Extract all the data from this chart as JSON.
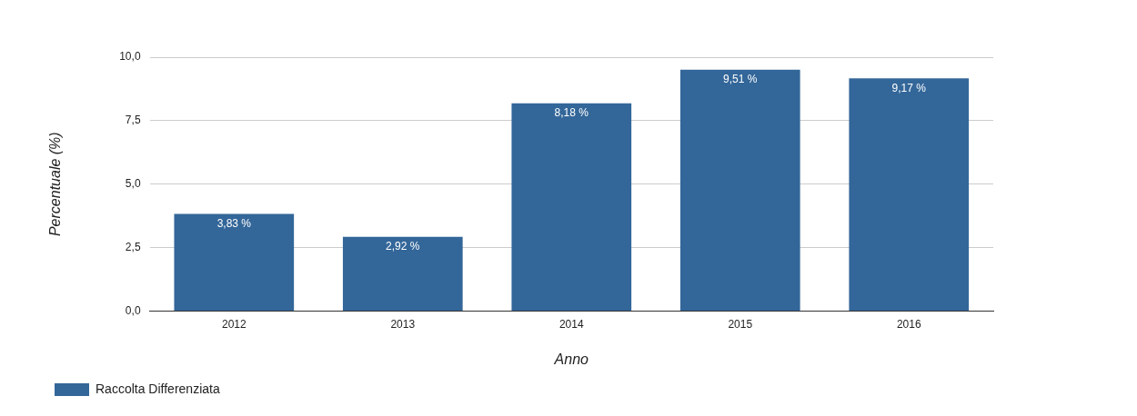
{
  "chart_data": {
    "type": "bar",
    "xlabel": "Anno",
    "ylabel": "Percentuale (%)",
    "categories": [
      "2012",
      "2013",
      "2014",
      "2015",
      "2016"
    ],
    "series": [
      {
        "name": "Raccolta Differenziata",
        "color": "#336699",
        "values": [
          3.83,
          2.92,
          8.18,
          9.51,
          9.17
        ],
        "value_labels": [
          "3,83 %",
          "2,92 %",
          "8,18 %",
          "9,51 %",
          "9,17 %"
        ]
      }
    ],
    "ylim": [
      0,
      10
    ],
    "yticks": [
      {
        "value": 0,
        "label": "0,0"
      },
      {
        "value": 2.5,
        "label": "2,5"
      },
      {
        "value": 5,
        "label": "5,0"
      },
      {
        "value": 7.5,
        "label": "7,5"
      },
      {
        "value": 10,
        "label": "10,0"
      }
    ],
    "grid": "y",
    "legend": "bottom left"
  }
}
